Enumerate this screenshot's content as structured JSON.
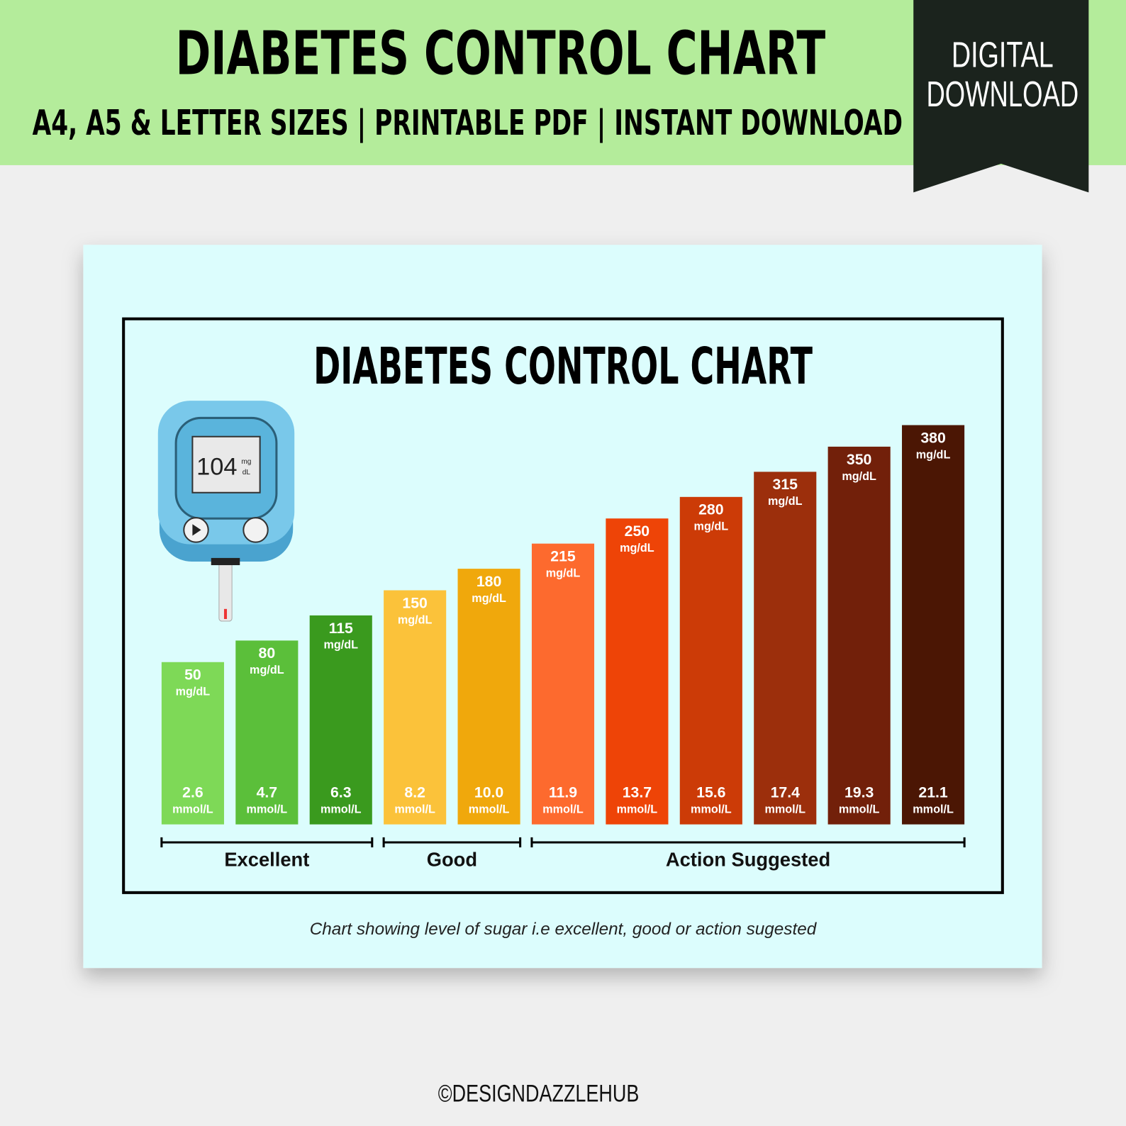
{
  "header": {
    "title": "DIABETES CONTROL CHART",
    "subtitle": "A4, A5 & LETTER SIZES | PRINTABLE PDF | INSTANT DOWNLOAD",
    "badge": [
      "DIGITAL",
      "DOWNLOAD"
    ]
  },
  "meter": {
    "reading": "104",
    "unit_top": "mg",
    "unit_bottom": "dL"
  },
  "chart_data": {
    "type": "bar",
    "title": "DIABETES CONTROL CHART",
    "values": [
      50,
      80,
      115,
      150,
      180,
      215,
      250,
      280,
      315,
      350,
      380
    ],
    "unit": "mg/dL",
    "secondary_values": [
      2.6,
      4.7,
      6.3,
      8.2,
      10.0,
      11.9,
      13.7,
      15.6,
      17.4,
      19.3,
      21.1
    ],
    "secondary_value_labels": [
      "2.6",
      "4.7",
      "6.3",
      "8.2",
      "10.0",
      "11.9",
      "13.7",
      "15.6",
      "17.4",
      "19.3",
      "21.1"
    ],
    "secondary_unit": "mmol/L",
    "colors": [
      "#7ed957",
      "#5bbf3a",
      "#3a9a1e",
      "#fbc23a",
      "#f0a80c",
      "#fd6a2e",
      "#ee4407",
      "#cc3b07",
      "#9c2f0c",
      "#72200a",
      "#4b1604"
    ],
    "groups": [
      {
        "label": "Excellent",
        "bars": 3
      },
      {
        "label": "Good",
        "bars": 2
      },
      {
        "label": "Action Suggested",
        "bars": 6
      }
    ]
  },
  "caption": "Chart showing level of sugar i.e excellent, good or action sugested",
  "footer": "©DESIGNDAZZLEHUB"
}
